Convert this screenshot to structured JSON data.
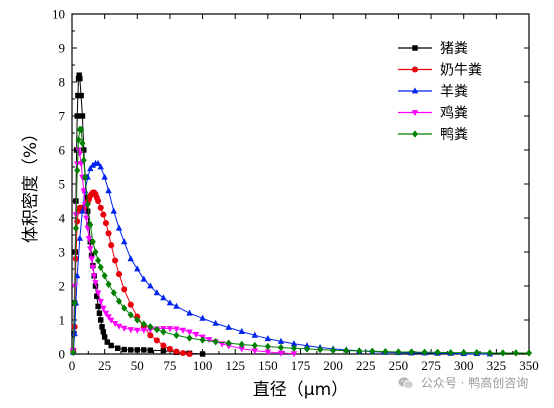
{
  "chart_data": {
    "type": "line",
    "xlabel": "直径（μm）",
    "ylabel": "体积密度（%）",
    "xlim": [
      0,
      350
    ],
    "ylim": [
      0,
      10
    ],
    "xticks": [
      0,
      25,
      50,
      75,
      100,
      125,
      150,
      175,
      200,
      225,
      250,
      275,
      300,
      325,
      350
    ],
    "yticks": [
      0,
      1,
      2,
      3,
      4,
      5,
      6,
      7,
      8,
      9,
      10
    ],
    "grid": false,
    "legend_position": "top-right",
    "series": [
      {
        "name": "猪粪",
        "color": "#000000",
        "marker": "square",
        "x": [
          1,
          1.5,
          2,
          2.5,
          3,
          3.5,
          4,
          4.5,
          5,
          5.5,
          6,
          7,
          8,
          9,
          10,
          11,
          12,
          13,
          14,
          15,
          16,
          17,
          18,
          19,
          20,
          21,
          22,
          23,
          24,
          25,
          27,
          30,
          35,
          40,
          45,
          50,
          55,
          60,
          70,
          80,
          90,
          100
        ],
        "values": [
          0.1,
          0.6,
          1.5,
          3.0,
          4.5,
          6.0,
          7.0,
          7.6,
          8.1,
          8.2,
          8.1,
          7.6,
          7.0,
          6.0,
          5.2,
          4.6,
          4.2,
          3.8,
          3.3,
          2.9,
          2.6,
          2.3,
          2.0,
          1.7,
          1.4,
          1.2,
          1.0,
          0.8,
          0.65,
          0.5,
          0.35,
          0.25,
          0.17,
          0.13,
          0.12,
          0.12,
          0.12,
          0.11,
          0.1,
          0.05,
          0.02,
          0.0
        ]
      },
      {
        "name": "奶牛粪",
        "color": "#e8000b",
        "marker": "circle",
        "x": [
          1,
          2,
          3,
          4,
          5,
          6,
          7,
          8,
          9,
          10,
          11,
          12,
          13,
          14,
          15,
          16,
          17,
          18,
          19,
          20,
          22,
          24,
          26,
          28,
          30,
          33,
          36,
          40,
          45,
          50,
          55,
          60,
          65,
          70,
          75,
          80,
          85,
          90
        ],
        "values": [
          0.05,
          0.8,
          2.8,
          3.9,
          4.2,
          4.3,
          4.3,
          4.3,
          4.3,
          4.35,
          4.4,
          4.45,
          4.55,
          4.65,
          4.7,
          4.75,
          4.75,
          4.7,
          4.6,
          4.5,
          4.3,
          4.1,
          3.85,
          3.55,
          3.2,
          2.75,
          2.35,
          1.9,
          1.45,
          1.1,
          0.8,
          0.55,
          0.4,
          0.25,
          0.15,
          0.07,
          0.03,
          0.0
        ]
      },
      {
        "name": "羊粪",
        "color": "#0022ee",
        "marker": "triangle-up",
        "x": [
          1,
          2,
          3,
          4,
          6,
          8,
          10,
          12,
          14,
          16,
          18,
          20,
          22,
          25,
          28,
          32,
          36,
          40,
          45,
          50,
          55,
          60,
          65,
          70,
          75,
          80,
          90,
          100,
          110,
          120,
          130,
          140,
          150,
          160,
          170,
          180,
          190,
          200,
          210,
          220,
          230,
          240,
          250,
          260,
          270,
          280,
          290,
          300,
          310,
          320
        ],
        "values": [
          0.05,
          0.6,
          1.5,
          2.3,
          3.4,
          4.2,
          4.8,
          5.2,
          5.45,
          5.55,
          5.6,
          5.6,
          5.5,
          5.2,
          4.8,
          4.2,
          3.7,
          3.3,
          2.8,
          2.5,
          2.2,
          2.0,
          1.8,
          1.65,
          1.5,
          1.4,
          1.2,
          1.05,
          0.9,
          0.78,
          0.66,
          0.55,
          0.45,
          0.37,
          0.3,
          0.24,
          0.19,
          0.15,
          0.12,
          0.09,
          0.07,
          0.05,
          0.04,
          0.03,
          0.03,
          0.02,
          0.02,
          0.01,
          0.01,
          0.0
        ]
      },
      {
        "name": "鸡粪",
        "color": "#ff00ff",
        "marker": "triangle-down",
        "x": [
          1,
          2,
          3,
          4,
          5,
          6,
          7,
          8,
          9,
          10,
          11,
          12,
          13,
          14,
          15,
          16,
          17,
          18,
          20,
          22,
          24,
          26,
          28,
          30,
          33,
          36,
          40,
          45,
          50,
          55,
          60,
          65,
          70,
          75,
          80,
          85,
          90,
          95,
          100,
          105,
          110,
          115,
          120,
          130,
          140,
          150,
          160,
          170
        ],
        "values": [
          0.1,
          2.0,
          4.1,
          5.6,
          6.0,
          5.9,
          5.6,
          5.2,
          4.8,
          4.4,
          4.0,
          3.7,
          3.4,
          3.1,
          2.8,
          2.55,
          2.3,
          2.1,
          1.8,
          1.55,
          1.35,
          1.2,
          1.1,
          1.0,
          0.9,
          0.82,
          0.76,
          0.72,
          0.7,
          0.7,
          0.72,
          0.74,
          0.75,
          0.75,
          0.74,
          0.7,
          0.65,
          0.58,
          0.5,
          0.43,
          0.36,
          0.3,
          0.24,
          0.16,
          0.1,
          0.06,
          0.03,
          0.01
        ]
      },
      {
        "name": "鸭粪",
        "color": "#008000",
        "marker": "diamond",
        "x": [
          1,
          2,
          3,
          4,
          5,
          6,
          7,
          8,
          9,
          10,
          12,
          14,
          16,
          18,
          20,
          22,
          25,
          28,
          32,
          36,
          40,
          45,
          50,
          55,
          60,
          65,
          70,
          80,
          90,
          100,
          110,
          120,
          130,
          140,
          150,
          160,
          170,
          180,
          190,
          200,
          210,
          220,
          230,
          240,
          250,
          260,
          270,
          280,
          290,
          300,
          310,
          320,
          330,
          340,
          350
        ],
        "values": [
          0.05,
          1.5,
          3.7,
          5.4,
          6.3,
          6.6,
          6.6,
          6.2,
          5.7,
          5.2,
          4.4,
          3.8,
          3.3,
          3.0,
          2.75,
          2.55,
          2.3,
          2.05,
          1.8,
          1.55,
          1.35,
          1.15,
          1.0,
          0.88,
          0.8,
          0.72,
          0.65,
          0.55,
          0.47,
          0.41,
          0.36,
          0.32,
          0.28,
          0.25,
          0.22,
          0.19,
          0.17,
          0.15,
          0.13,
          0.11,
          0.1,
          0.09,
          0.08,
          0.07,
          0.06,
          0.06,
          0.05,
          0.05,
          0.04,
          0.04,
          0.04,
          0.03,
          0.03,
          0.03,
          0.03
        ]
      }
    ]
  },
  "watermark": {
    "icon": "wechat-icon",
    "text": "公众号 · 鸭高创咨询"
  }
}
